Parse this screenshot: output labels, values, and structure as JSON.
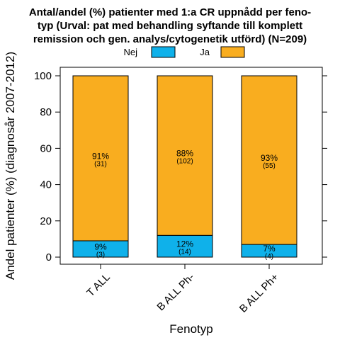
{
  "chart_data": {
    "type": "bar",
    "stacked": true,
    "title_lines": [
      "Antal/andel (%) patienter med 1:a CR uppnådd per feno-",
      "typ (Urval: pat med behandling syftande till komplett",
      "remission och gen. analys/cytogenetik utförd) (N=209)"
    ],
    "xlabel": "Fenotyp",
    "ylabel": "Andel patienter (%) (diagnosår 2007-2012)",
    "ylim": [
      0,
      100
    ],
    "yticks": [
      0,
      20,
      40,
      60,
      80,
      100
    ],
    "categories": [
      "T ALL",
      "B ALL Ph-",
      "B ALL Ph+"
    ],
    "series": [
      {
        "name": "Nej",
        "color": "#0fb1ea",
        "values": [
          9,
          12,
          7
        ],
        "pct_labels": [
          "9%",
          "12%",
          "7%"
        ],
        "n_labels": [
          "(3)",
          "(14)",
          "(4)"
        ]
      },
      {
        "name": "Ja",
        "color": "#f9ad1f",
        "values": [
          91,
          88,
          93
        ],
        "pct_labels": [
          "91%",
          "88%",
          "93%"
        ],
        "n_labels": [
          "(31)",
          "(102)",
          "(55)"
        ]
      }
    ],
    "legend_position": "top",
    "grid": false
  }
}
